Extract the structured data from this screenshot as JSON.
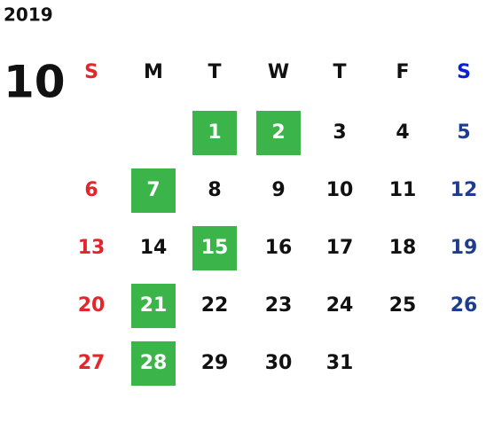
{
  "year": "2019",
  "month": "10",
  "weekdays": [
    "S",
    "M",
    "T",
    "W",
    "T",
    "F",
    "S"
  ],
  "weeks": [
    [
      null,
      null,
      {
        "day": 1,
        "highlight": true
      },
      {
        "day": 2,
        "highlight": true
      },
      {
        "day": 3
      },
      {
        "day": 4
      },
      {
        "day": 5
      }
    ],
    [
      {
        "day": 6
      },
      {
        "day": 7,
        "highlight": true
      },
      {
        "day": 8
      },
      {
        "day": 9
      },
      {
        "day": 10
      },
      {
        "day": 11
      },
      {
        "day": 12
      }
    ],
    [
      {
        "day": 13
      },
      {
        "day": 14
      },
      {
        "day": 15,
        "highlight": true
      },
      {
        "day": 16
      },
      {
        "day": 17
      },
      {
        "day": 18
      },
      {
        "day": 19
      }
    ],
    [
      {
        "day": 20
      },
      {
        "day": 21,
        "highlight": true
      },
      {
        "day": 22
      },
      {
        "day": 23
      },
      {
        "day": 24
      },
      {
        "day": 25
      },
      {
        "day": 26
      }
    ],
    [
      {
        "day": 27
      },
      {
        "day": 28,
        "highlight": true
      },
      {
        "day": 29
      },
      {
        "day": 30
      },
      {
        "day": 31
      },
      null,
      null
    ]
  ]
}
